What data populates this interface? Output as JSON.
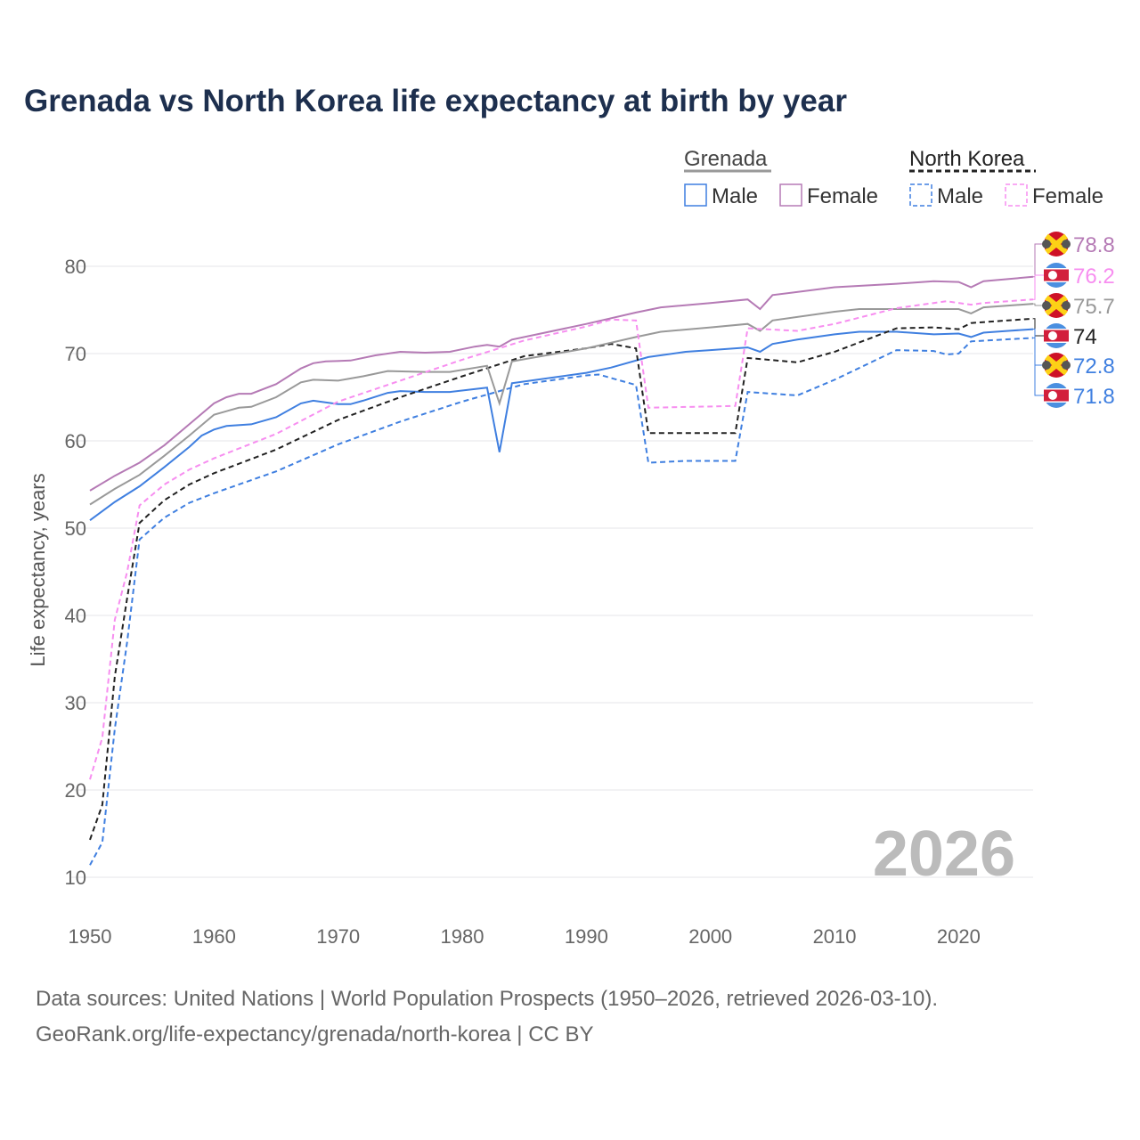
{
  "title": "Grenada vs North Korea life expectancy at birth by year",
  "legend": {
    "groups": [
      {
        "name": "Grenada",
        "items": [
          "Male",
          "Female"
        ]
      },
      {
        "name": "North Korea",
        "items": [
          "Male",
          "Female"
        ]
      }
    ]
  },
  "year_watermark": "2026",
  "sources": [
    "Data sources: United Nations | World Population Prospects (1950–2026, retrieved 2026-03-10).",
    "GeoRank.org/life-expectancy/grenada/north-korea | CC BY"
  ],
  "chart_data": {
    "type": "line",
    "title": "Grenada vs North Korea life expectancy at birth by year",
    "xlabel": "",
    "ylabel": "Life expectancy, years",
    "xlim": [
      1950,
      2026
    ],
    "ylim": [
      10,
      80
    ],
    "xticks": [
      1950,
      1960,
      1970,
      1980,
      1990,
      2000,
      2010,
      2020
    ],
    "yticks": [
      10,
      20,
      30,
      40,
      50,
      60,
      70,
      80
    ],
    "grid": true,
    "series": [
      {
        "name": "Grenada Female",
        "color": "#b57ab5",
        "dash": false,
        "end_label": "78.8",
        "flag": "grenada",
        "x": [
          1950,
          1952,
          1954,
          1956,
          1958,
          1960,
          1961,
          1962,
          1963,
          1965,
          1967,
          1968,
          1969,
          1971,
          1973,
          1975,
          1977,
          1979,
          1981,
          1982,
          1983,
          1984,
          1990,
          1994,
          1996,
          2000,
          2003,
          2004,
          2005,
          2010,
          2015,
          2018,
          2020,
          2021,
          2022,
          2026
        ],
        "y": [
          54.3,
          56.0,
          57.5,
          59.5,
          61.9,
          64.3,
          65.0,
          65.4,
          65.4,
          66.5,
          68.3,
          68.9,
          69.1,
          69.2,
          69.8,
          70.2,
          70.1,
          70.2,
          70.8,
          71.0,
          70.8,
          71.6,
          73.4,
          74.7,
          75.3,
          75.8,
          76.2,
          75.1,
          76.7,
          77.6,
          78.0,
          78.3,
          78.2,
          77.6,
          78.3,
          78.8
        ]
      },
      {
        "name": "North Korea Female",
        "color": "#f78ef0",
        "dash": true,
        "end_label": "76.2",
        "flag": "north-korea",
        "x": [
          1950,
          1951,
          1952,
          1953,
          1954,
          1956,
          1958,
          1960,
          1965,
          1970,
          1975,
          1980,
          1985,
          1990,
          1992,
          1994,
          1995,
          2002,
          2003,
          2007,
          2010,
          2015,
          2018,
          2019,
          2021,
          2022,
          2026
        ],
        "y": [
          21.2,
          26,
          39.5,
          45,
          52.6,
          55.0,
          56.7,
          58.0,
          60.8,
          64.5,
          66.9,
          69.3,
          71.5,
          73.1,
          73.9,
          73.8,
          63.8,
          64.0,
          72.9,
          72.6,
          73.4,
          75.2,
          75.8,
          76.0,
          75.6,
          75.8,
          76.2
        ]
      },
      {
        "name": "Grenada",
        "color": "#999999",
        "dash": false,
        "end_label": "75.7",
        "flag": "grenada",
        "x": [
          1950,
          1952,
          1954,
          1956,
          1958,
          1960,
          1962,
          1963,
          1965,
          1967,
          1968,
          1970,
          1972,
          1974,
          1977,
          1979,
          1982,
          1983,
          1984,
          1990,
          1994,
          1996,
          2000,
          2003,
          2004,
          2005,
          2010,
          2012,
          2016,
          2020,
          2021,
          2022,
          2026
        ],
        "y": [
          52.7,
          54.5,
          56.1,
          58.3,
          60.6,
          63.0,
          63.8,
          63.9,
          65.0,
          66.7,
          67.0,
          66.9,
          67.4,
          68.0,
          67.9,
          67.9,
          68.6,
          64.3,
          69.1,
          70.6,
          71.9,
          72.5,
          73.0,
          73.4,
          72.6,
          73.8,
          74.8,
          75.1,
          75.1,
          75.1,
          74.6,
          75.3,
          75.7
        ]
      },
      {
        "name": "North Korea",
        "color": "#222222",
        "dash": true,
        "end_label": "74",
        "flag": "north-korea",
        "x": [
          1950,
          1951,
          1952,
          1953,
          1954,
          1956,
          1958,
          1960,
          1965,
          1970,
          1975,
          1980,
          1985,
          1990,
          1992,
          1994,
          1995,
          2002,
          2003,
          2007,
          2010,
          2015,
          2018,
          2020,
          2021,
          2023,
          2026
        ],
        "y": [
          14.3,
          18.3,
          33.0,
          42,
          50.6,
          53.2,
          55.0,
          56.3,
          59.0,
          62.4,
          65.0,
          67.4,
          69.7,
          70.6,
          71.1,
          70.6,
          60.9,
          60.9,
          69.5,
          69.0,
          70.2,
          72.9,
          73.0,
          72.8,
          73.5,
          73.7,
          74.0
        ]
      },
      {
        "name": "Grenada Male",
        "color": "#3f7fe0",
        "dash": false,
        "end_label": "72.8",
        "flag": "grenada",
        "x": [
          1950,
          1952,
          1954,
          1956,
          1958,
          1959,
          1960,
          1961,
          1963,
          1965,
          1967,
          1968,
          1970,
          1971,
          1972,
          1974,
          1975,
          1977,
          1979,
          1982,
          1983,
          1984,
          1990,
          1992,
          1995,
          1998,
          2000,
          2003,
          2004,
          2005,
          2007,
          2010,
          2012,
          2015,
          2018,
          2020,
          2021,
          2022,
          2024,
          2026
        ],
        "y": [
          50.9,
          53.0,
          54.8,
          57.0,
          59.3,
          60.6,
          61.3,
          61.7,
          61.9,
          62.7,
          64.3,
          64.6,
          64.2,
          64.2,
          64.6,
          65.5,
          65.7,
          65.6,
          65.6,
          66.1,
          58.7,
          66.6,
          67.8,
          68.4,
          69.6,
          70.2,
          70.4,
          70.7,
          70.2,
          71.1,
          71.6,
          72.2,
          72.5,
          72.5,
          72.2,
          72.3,
          71.9,
          72.4,
          72.6,
          72.8
        ]
      },
      {
        "name": "North Korea Male",
        "color": "#3f7fe0",
        "dash": true,
        "end_label": "71.8",
        "flag": "north-korea",
        "x": [
          1950,
          1951,
          1952,
          1953,
          1954,
          1956,
          1958,
          1960,
          1965,
          1970,
          1975,
          1980,
          1985,
          1990,
          1991,
          1994,
          1995,
          1998,
          2002,
          2003,
          2007,
          2010,
          2015,
          2018,
          2019,
          2020,
          2021,
          2026
        ],
        "y": [
          11.4,
          14,
          27,
          37,
          48.7,
          51.2,
          52.9,
          54.0,
          56.5,
          59.6,
          62.2,
          64.5,
          66.5,
          67.5,
          67.6,
          66.4,
          57.5,
          57.7,
          57.7,
          65.6,
          65.2,
          67.0,
          70.4,
          70.3,
          69.9,
          70.0,
          71.4,
          71.8
        ]
      }
    ]
  }
}
